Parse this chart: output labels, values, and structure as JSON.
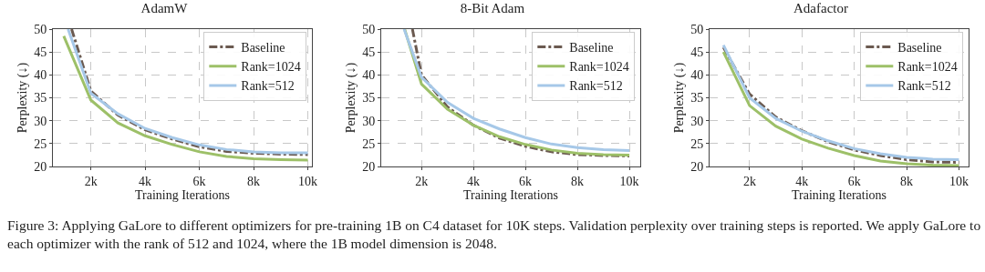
{
  "chart_data": [
    {
      "type": "line",
      "title": "AdamW",
      "xlabel": "Training Iterations",
      "ylabel": "Perplexity (↓)",
      "xlim": [
        600,
        10150
      ],
      "ylim": [
        20,
        50
      ],
      "xticks": [
        {
          "value": 2000,
          "label": "2k"
        },
        {
          "value": 4000,
          "label": "4k"
        },
        {
          "value": 6000,
          "label": "6k"
        },
        {
          "value": 8000,
          "label": "8k"
        },
        {
          "value": 10000,
          "label": "10k"
        }
      ],
      "yticks": [
        20,
        25,
        30,
        35,
        40,
        45,
        50
      ],
      "grid": true,
      "legend": "top right",
      "marker": "none",
      "annotations": [
        "Figure 3: Applying GaLore to different optimizers for pre-training 1B on C4 dataset for 10K steps. Validation perplexity over training steps is reported. We apply GaLore to each optimizer with the rank of 512 and 1024, where the 1B model dimension is 2048."
      ],
      "series": [
        {
          "name": "Baseline",
          "color": "#6b5a50",
          "line_style": "dashdot",
          "x": [
            1290,
            2000,
            3000,
            4000,
            5000,
            6000,
            7000,
            8000,
            9000,
            10000
          ],
          "values": [
            50,
            36.5,
            31.2,
            28,
            26,
            24.3,
            23.3,
            22.9,
            22.7,
            22.6
          ]
        },
        {
          "name": "Rank=1024",
          "color": "#9dc068",
          "line_style": "solid",
          "x": [
            1000,
            2000,
            3000,
            4000,
            5000,
            6000,
            7000,
            8000,
            9000,
            10000
          ],
          "values": [
            48.5,
            34.5,
            29.5,
            26.7,
            24.8,
            23.2,
            22.2,
            21.7,
            21.5,
            21.4
          ]
        },
        {
          "name": "Rank=512",
          "color": "#a6c8e8",
          "line_style": "solid",
          "x": [
            1160,
            2000,
            3000,
            4000,
            5000,
            6000,
            7000,
            8000,
            9000,
            10000
          ],
          "values": [
            50,
            36,
            31.5,
            28.3,
            26.3,
            24.7,
            23.7,
            23.2,
            23,
            23
          ]
        }
      ]
    },
    {
      "type": "line",
      "title": "8-Bit Adam",
      "xlabel": "Training Iterations",
      "ylabel": "Perplexity (↓)",
      "xlim": [
        450,
        10420
      ],
      "ylim": [
        20,
        50
      ],
      "xticks": [
        {
          "value": 2000,
          "label": "2k"
        },
        {
          "value": 4000,
          "label": "4k"
        },
        {
          "value": 6000,
          "label": "6k"
        },
        {
          "value": 8000,
          "label": "8k"
        },
        {
          "value": 10000,
          "label": "10k"
        }
      ],
      "yticks": [
        20,
        25,
        30,
        35,
        40,
        45,
        50
      ],
      "grid": true,
      "legend": "top right",
      "marker": "none",
      "series": [
        {
          "name": "Baseline",
          "color": "#6b5a50",
          "line_style": "dashdot",
          "x": [
            1650,
            2000,
            3000,
            4000,
            5000,
            6000,
            7000,
            8000,
            9000,
            10000
          ],
          "values": [
            50,
            40,
            33,
            29,
            26.2,
            24.4,
            23.2,
            22.6,
            22.4,
            22.3
          ]
        },
        {
          "name": "Rank=1024",
          "color": "#9dc068",
          "line_style": "solid",
          "x": [
            1350,
            2000,
            3000,
            4000,
            5000,
            6000,
            7000,
            8000,
            9000,
            10000
          ],
          "values": [
            50,
            38,
            32.5,
            29,
            26.5,
            24.8,
            23.6,
            22.9,
            22.6,
            22.5
          ]
        },
        {
          "name": "Rank=512",
          "color": "#a6c8e8",
          "line_style": "solid",
          "x": [
            1330,
            2000,
            3000,
            4000,
            5000,
            6000,
            7000,
            8000,
            9000,
            10000
          ],
          "values": [
            50,
            39.5,
            34,
            30.5,
            28.2,
            26.3,
            24.9,
            24.1,
            23.7,
            23.5
          ]
        }
      ]
    },
    {
      "type": "line",
      "title": "Adafactor",
      "xlabel": "Training Iterations",
      "ylabel": "Perplexity (↓)",
      "xlim": [
        470,
        10370
      ],
      "ylim": [
        20,
        50
      ],
      "xticks": [
        {
          "value": 2000,
          "label": "2k"
        },
        {
          "value": 4000,
          "label": "4k"
        },
        {
          "value": 6000,
          "label": "6k"
        },
        {
          "value": 8000,
          "label": "8k"
        },
        {
          "value": 10000,
          "label": "10k"
        }
      ],
      "yticks": [
        20,
        25,
        30,
        35,
        40,
        45,
        50
      ],
      "grid": true,
      "legend": "top right",
      "marker": "none",
      "series": [
        {
          "name": "Baseline",
          "color": "#6b5a50",
          "line_style": "dashdot",
          "x": [
            1000,
            2000,
            3000,
            4000,
            5000,
            6000,
            7000,
            8000,
            9000,
            10000
          ],
          "values": [
            46,
            35.8,
            30.8,
            27.8,
            25.4,
            23.6,
            22.4,
            21.5,
            21,
            20.9
          ]
        },
        {
          "name": "Rank=1024",
          "color": "#9dc068",
          "line_style": "solid",
          "x": [
            1000,
            2000,
            3000,
            4000,
            5000,
            6000,
            7000,
            8000,
            9000,
            10000
          ],
          "values": [
            45,
            33.3,
            28.8,
            26,
            24,
            22.4,
            21.2,
            20.6,
            20.3,
            20.2
          ]
        },
        {
          "name": "Rank=512",
          "color": "#a6c8e8",
          "line_style": "solid",
          "x": [
            1000,
            2000,
            3000,
            4000,
            5000,
            6000,
            7000,
            8000,
            9000,
            10000
          ],
          "values": [
            46.5,
            35,
            30.5,
            27.7,
            25.6,
            23.9,
            22.8,
            22,
            21.6,
            21.5
          ]
        }
      ]
    }
  ]
}
